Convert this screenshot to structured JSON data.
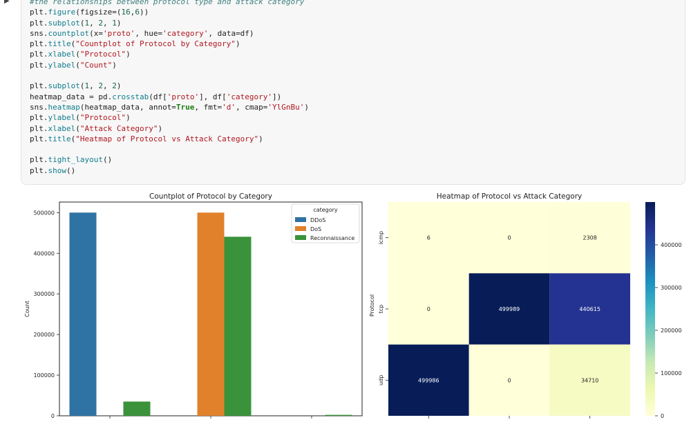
{
  "code_cell": {
    "lines": [
      [
        {
          "t": "#the relationships between protocol type and attack category",
          "c": "comment"
        }
      ],
      [
        {
          "t": "plt.",
          "c": "plain"
        },
        {
          "t": "figure",
          "c": "fn"
        },
        {
          "t": "(figsize=(",
          "c": "plain"
        },
        {
          "t": "16",
          "c": "num"
        },
        {
          "t": ",",
          "c": "plain"
        },
        {
          "t": "6",
          "c": "num"
        },
        {
          "t": "))",
          "c": "plain"
        }
      ],
      [
        {
          "t": "plt.",
          "c": "plain"
        },
        {
          "t": "subplot",
          "c": "fn"
        },
        {
          "t": "(",
          "c": "plain"
        },
        {
          "t": "1",
          "c": "num"
        },
        {
          "t": ", ",
          "c": "plain"
        },
        {
          "t": "2",
          "c": "num"
        },
        {
          "t": ", ",
          "c": "plain"
        },
        {
          "t": "1",
          "c": "num"
        },
        {
          "t": ")",
          "c": "plain"
        }
      ],
      [
        {
          "t": "sns.",
          "c": "plain"
        },
        {
          "t": "countplot",
          "c": "fn"
        },
        {
          "t": "(x=",
          "c": "plain"
        },
        {
          "t": "'proto'",
          "c": "str"
        },
        {
          "t": ", hue=",
          "c": "plain"
        },
        {
          "t": "'category'",
          "c": "str"
        },
        {
          "t": ", data=df)",
          "c": "plain"
        }
      ],
      [
        {
          "t": "plt.",
          "c": "plain"
        },
        {
          "t": "title",
          "c": "fn"
        },
        {
          "t": "(",
          "c": "plain"
        },
        {
          "t": "\"Countplot of Protocol by Category\"",
          "c": "str"
        },
        {
          "t": ")",
          "c": "plain"
        }
      ],
      [
        {
          "t": "plt.",
          "c": "plain"
        },
        {
          "t": "xlabel",
          "c": "fn"
        },
        {
          "t": "(",
          "c": "plain"
        },
        {
          "t": "\"Protocol\"",
          "c": "str"
        },
        {
          "t": ")",
          "c": "plain"
        }
      ],
      [
        {
          "t": "plt.",
          "c": "plain"
        },
        {
          "t": "ylabel",
          "c": "fn"
        },
        {
          "t": "(",
          "c": "plain"
        },
        {
          "t": "\"Count\"",
          "c": "str"
        },
        {
          "t": ")",
          "c": "plain"
        }
      ],
      [],
      [
        {
          "t": "plt.",
          "c": "plain"
        },
        {
          "t": "subplot",
          "c": "fn"
        },
        {
          "t": "(",
          "c": "plain"
        },
        {
          "t": "1",
          "c": "num"
        },
        {
          "t": ", ",
          "c": "plain"
        },
        {
          "t": "2",
          "c": "num"
        },
        {
          "t": ", ",
          "c": "plain"
        },
        {
          "t": "2",
          "c": "num"
        },
        {
          "t": ")",
          "c": "plain"
        }
      ],
      [
        {
          "t": "heatmap_data = pd.",
          "c": "plain"
        },
        {
          "t": "crosstab",
          "c": "fn"
        },
        {
          "t": "(df[",
          "c": "plain"
        },
        {
          "t": "'proto'",
          "c": "str"
        },
        {
          "t": "], df[",
          "c": "plain"
        },
        {
          "t": "'category'",
          "c": "str"
        },
        {
          "t": "])",
          "c": "plain"
        }
      ],
      [
        {
          "t": "sns.",
          "c": "plain"
        },
        {
          "t": "heatmap",
          "c": "fn"
        },
        {
          "t": "(heatmap_data, annot=",
          "c": "plain"
        },
        {
          "t": "True",
          "c": "kw"
        },
        {
          "t": ", fmt=",
          "c": "plain"
        },
        {
          "t": "'d'",
          "c": "str"
        },
        {
          "t": ", cmap=",
          "c": "plain"
        },
        {
          "t": "'YlGnBu'",
          "c": "str"
        },
        {
          "t": ")",
          "c": "plain"
        }
      ],
      [
        {
          "t": "plt.",
          "c": "plain"
        },
        {
          "t": "ylabel",
          "c": "fn"
        },
        {
          "t": "(",
          "c": "plain"
        },
        {
          "t": "\"Protocol\"",
          "c": "str"
        },
        {
          "t": ")",
          "c": "plain"
        }
      ],
      [
        {
          "t": "plt.",
          "c": "plain"
        },
        {
          "t": "xlabel",
          "c": "fn"
        },
        {
          "t": "(",
          "c": "plain"
        },
        {
          "t": "\"Attack Category\"",
          "c": "str"
        },
        {
          "t": ")",
          "c": "plain"
        }
      ],
      [
        {
          "t": "plt.",
          "c": "plain"
        },
        {
          "t": "title",
          "c": "fn"
        },
        {
          "t": "(",
          "c": "plain"
        },
        {
          "t": "\"Heatmap of Protocol vs Attack Category\"",
          "c": "str"
        },
        {
          "t": ")",
          "c": "plain"
        }
      ],
      [],
      [
        {
          "t": "plt.",
          "c": "plain"
        },
        {
          "t": "tight_layout",
          "c": "fn"
        },
        {
          "t": "()",
          "c": "plain"
        }
      ],
      [
        {
          "t": "plt.",
          "c": "plain"
        },
        {
          "t": "show",
          "c": "fn"
        },
        {
          "t": "()",
          "c": "plain"
        }
      ]
    ]
  },
  "chart_data": [
    {
      "type": "bar",
      "title": "Countplot of Protocol by Category",
      "xlabel": "",
      "ylabel": "Count",
      "categories": [
        "",
        "",
        ""
      ],
      "series": [
        {
          "name": "DDoS",
          "color": "#2f73a4",
          "values": [
            500000,
            0,
            0
          ]
        },
        {
          "name": "DoS",
          "color": "#e1812c",
          "values": [
            0,
            500000,
            0
          ]
        },
        {
          "name": "Reconnaissance",
          "color": "#3a923a",
          "values": [
            35000,
            440615,
            2308
          ]
        }
      ],
      "ylim": [
        0,
        520000
      ],
      "yticks": [
        0,
        100000,
        200000,
        300000,
        400000,
        500000
      ],
      "legend": {
        "title": "category",
        "placement": "top-right"
      },
      "grid": false
    },
    {
      "type": "heatmap",
      "title": "Heatmap of Protocol vs Attack Category",
      "ylabel": "Protocol",
      "xlabel": "",
      "rows": [
        "icmp",
        "tcp",
        "udp"
      ],
      "cols": [
        "",
        "",
        ""
      ],
      "values": [
        [
          6,
          0,
          2308
        ],
        [
          0,
          499989,
          440615
        ],
        [
          499986,
          0,
          34710
        ]
      ],
      "colorbar": {
        "min": 0,
        "max": 499989,
        "ticks": [
          0,
          100000,
          200000,
          300000,
          400000
        ]
      },
      "cmap": [
        "#ffffd9",
        "#edf8b1",
        "#c7e9b4",
        "#7fcdbb",
        "#41b6c4",
        "#1d91c0",
        "#225ea8",
        "#253494",
        "#081d58"
      ]
    }
  ]
}
